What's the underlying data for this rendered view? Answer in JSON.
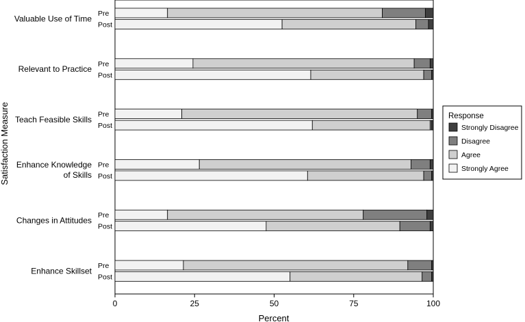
{
  "chart_data": {
    "type": "bar",
    "orientation": "horizontal",
    "stacked": true,
    "xlabel": "Percent",
    "ylabel": "Satisfaction Measure",
    "xlim": [
      0,
      100
    ],
    "xticks": [
      0,
      25,
      50,
      75,
      100
    ],
    "grid": false,
    "legend": {
      "title": "Response",
      "placement": "right",
      "entries": [
        "Strongly Disagree",
        "Disagree",
        "Agree",
        "Strongly Agree"
      ]
    },
    "stack_order": [
      "Strongly Agree",
      "Agree",
      "Disagree",
      "Strongly Disagree"
    ],
    "colors": {
      "Strongly Agree": "#f2f2f2",
      "Agree": "#cfcfcf",
      "Disagree": "#7f7f7f",
      "Strongly Disagree": "#3f3f3f"
    },
    "groups": [
      {
        "label": [
          "Valuable Use of Time"
        ],
        "bars": [
          {
            "label": "Pre",
            "values": [
              16.5,
              67.5,
              13.5,
              2.5
            ]
          },
          {
            "label": "Post",
            "values": [
              52.5,
              42.0,
              4.0,
              1.5
            ]
          }
        ]
      },
      {
        "label": [
          "Relevant to Practice"
        ],
        "bars": [
          {
            "label": "Pre",
            "values": [
              24.5,
              69.5,
              5.0,
              1.0
            ]
          },
          {
            "label": "Post",
            "values": [
              61.5,
              35.5,
              2.5,
              0.5
            ]
          }
        ]
      },
      {
        "label": [
          "Teach Feasible Skills"
        ],
        "bars": [
          {
            "label": "Pre",
            "values": [
              21.0,
              74.0,
              4.5,
              0.5
            ]
          },
          {
            "label": "Post",
            "values": [
              62.0,
              37.0,
              0.5,
              0.5
            ]
          }
        ]
      },
      {
        "label": [
          "Enhance Knowledge",
          "of Skills"
        ],
        "bars": [
          {
            "label": "Pre",
            "values": [
              26.5,
              66.5,
              6.0,
              1.0
            ]
          },
          {
            "label": "Post",
            "values": [
              60.5,
              36.5,
              2.5,
              0.5
            ]
          }
        ]
      },
      {
        "label": [
          "Changes in Attitudes"
        ],
        "bars": [
          {
            "label": "Pre",
            "values": [
              16.5,
              61.5,
              20.0,
              2.0
            ]
          },
          {
            "label": "Post",
            "values": [
              47.5,
              42.0,
              9.5,
              1.0
            ]
          }
        ]
      },
      {
        "label": [
          "Enhance Skillset"
        ],
        "bars": [
          {
            "label": "Pre",
            "values": [
              21.5,
              70.5,
              7.5,
              0.5
            ]
          },
          {
            "label": "Post",
            "values": [
              55.0,
              41.5,
              3.0,
              0.5
            ]
          }
        ]
      }
    ]
  }
}
